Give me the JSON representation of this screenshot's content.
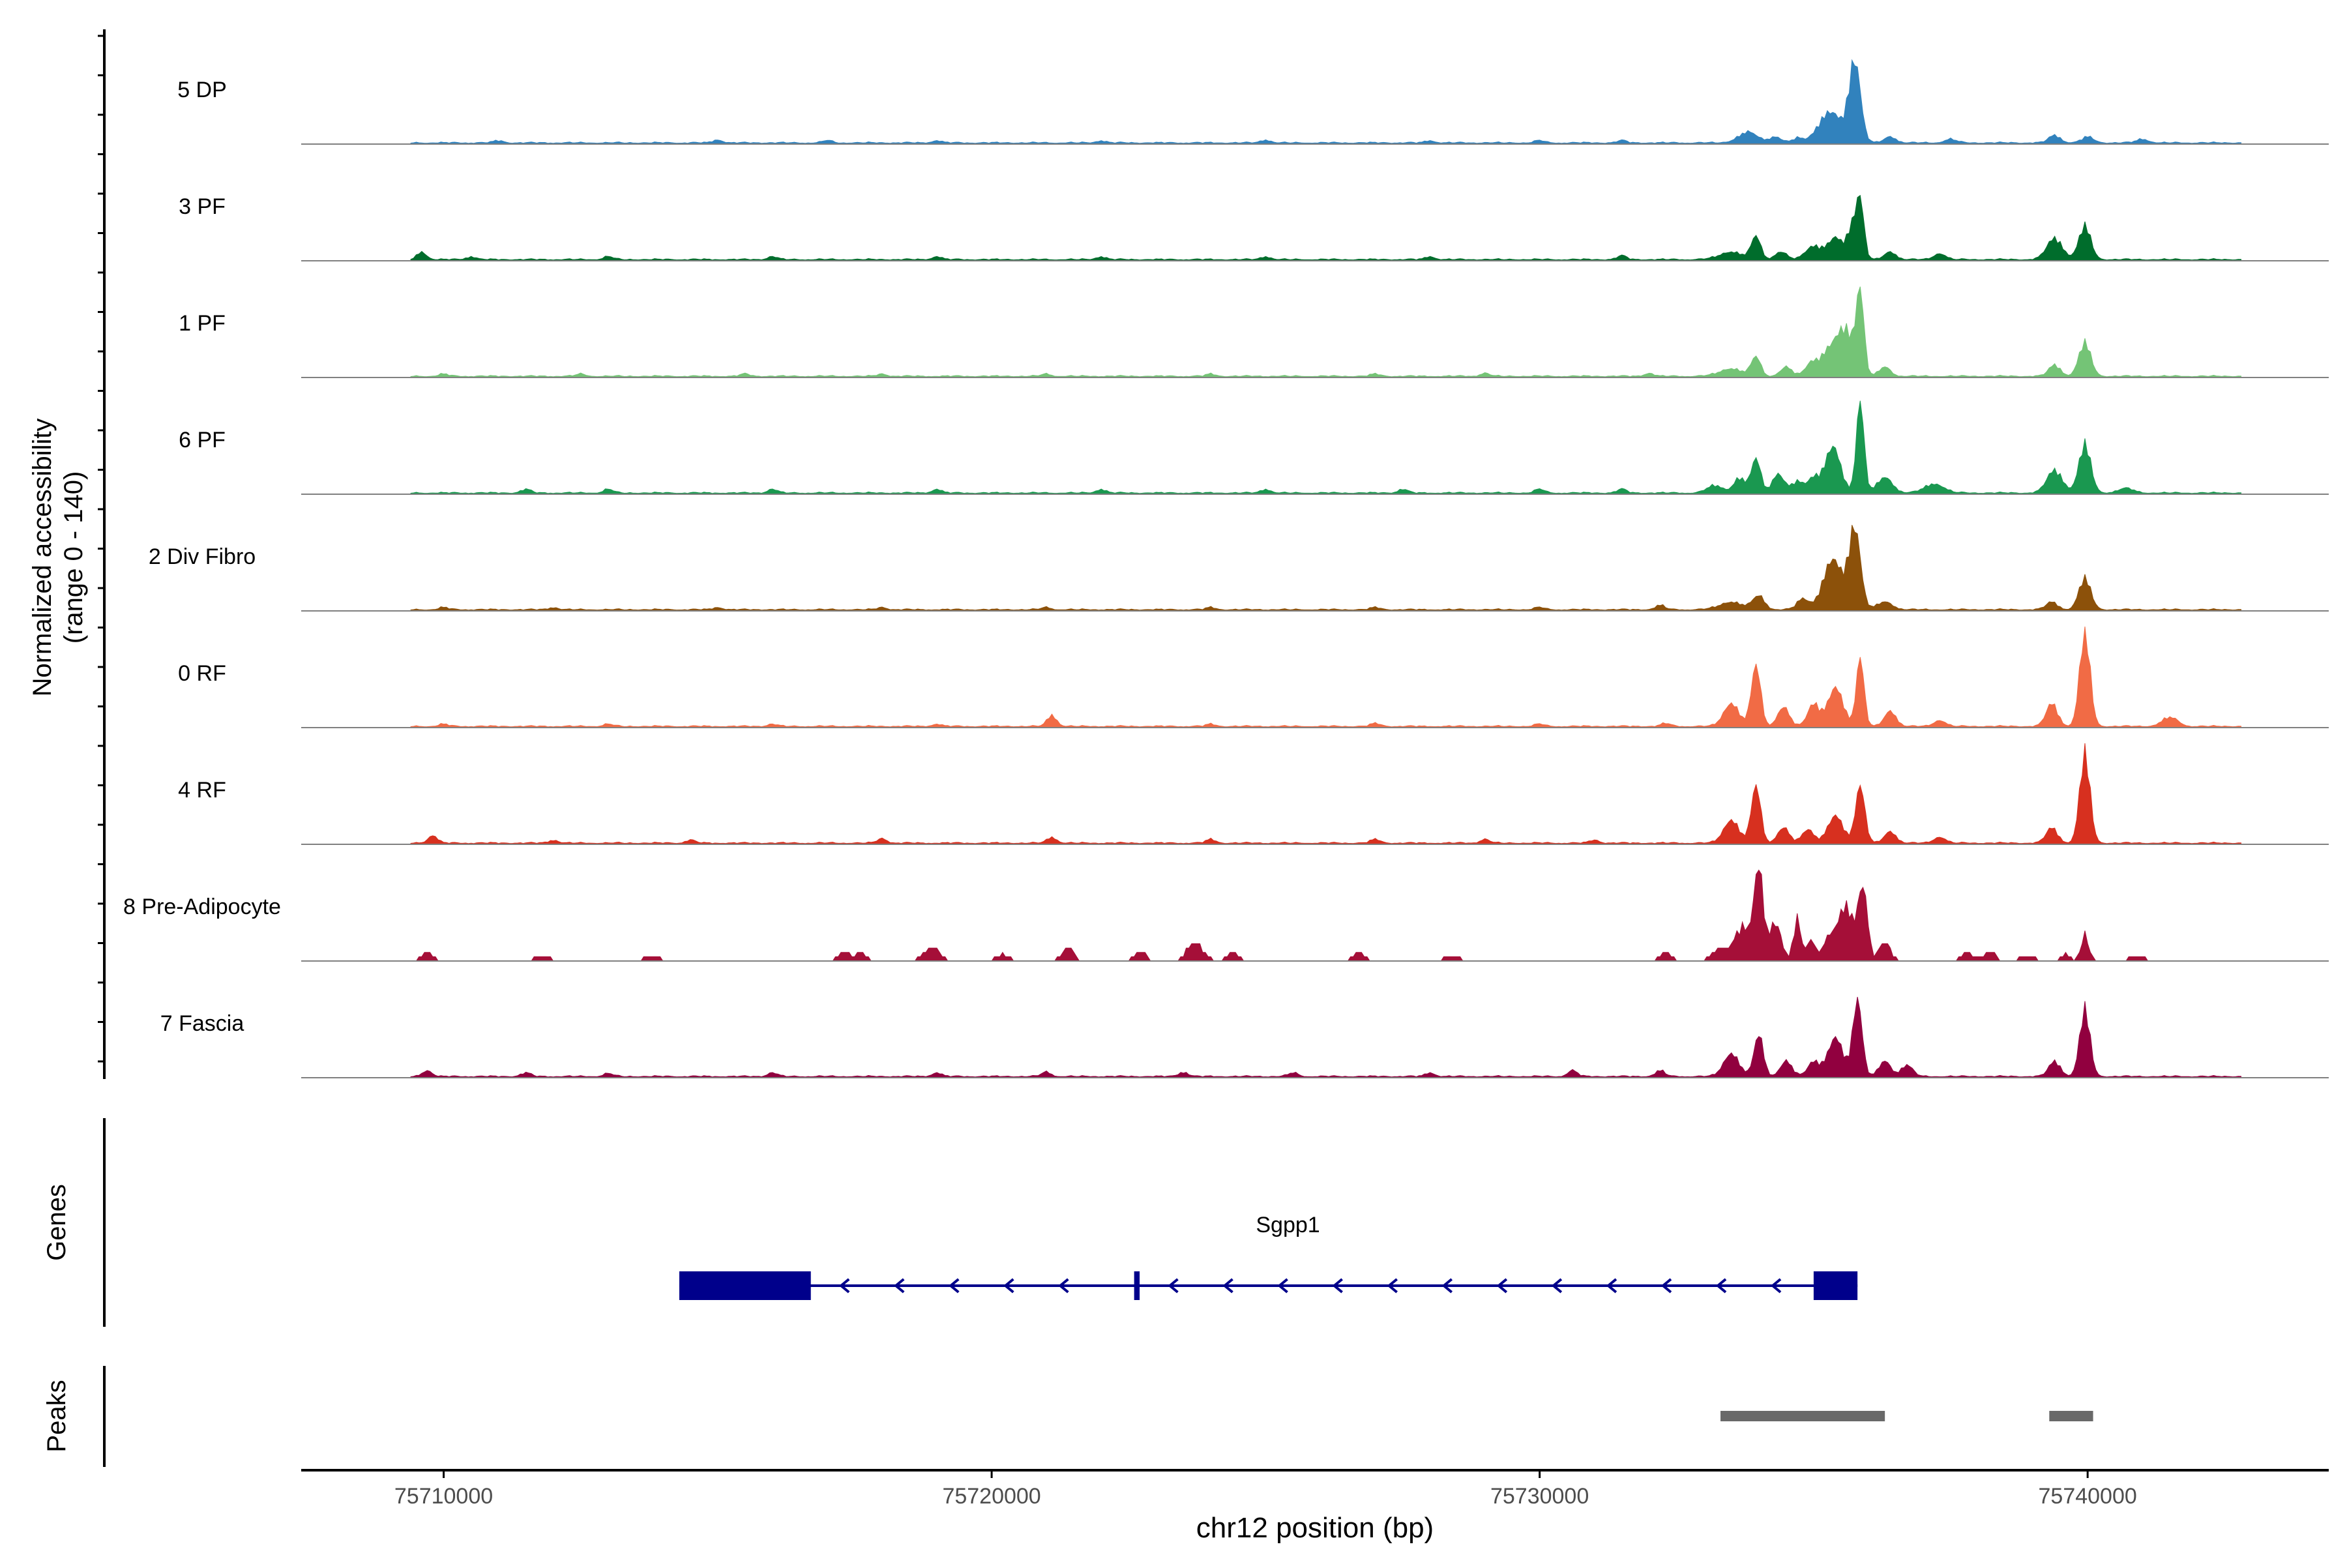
{
  "chart_data": {
    "type": "area",
    "title": "",
    "chromosome": "chr12",
    "xlabel": "chr12 position (bp)",
    "ylabel": "Normalized accessibility",
    "ylabel_range": "(range 0 - 140)",
    "xlim": [
      75707400,
      75744400
    ],
    "ylim": [
      0,
      140
    ],
    "x_ticks": [
      75710000,
      75720000,
      75730000,
      75740000
    ],
    "x_tick_labels": [
      "75710000",
      "75720000",
      "75730000",
      "75740000"
    ],
    "tracks": [
      {
        "name": "5 DP",
        "color": "#3182BD",
        "bg": [
          [
            75709000,
            4
          ],
          [
            75711000,
            3
          ],
          [
            75715000,
            4
          ],
          [
            75717000,
            3
          ],
          [
            75719000,
            3
          ],
          [
            75722000,
            3
          ],
          [
            75725000,
            4
          ],
          [
            75728000,
            3
          ],
          [
            75730000,
            3
          ],
          [
            75731500,
            3
          ]
        ],
        "peaks": [
          [
            75733800,
            14,
            250
          ],
          [
            75734300,
            8,
            150
          ],
          [
            75734700,
            6,
            120
          ],
          [
            75735300,
            40,
            300
          ],
          [
            75735750,
            105,
            150
          ],
          [
            75736400,
            8,
            150
          ],
          [
            75737500,
            5,
            150
          ],
          [
            75739400,
            10,
            150
          ],
          [
            75740000,
            8,
            150
          ],
          [
            75741000,
            5,
            150
          ]
        ]
      },
      {
        "name": "3 PF",
        "color": "#006D2C",
        "bg": [
          [
            75709600,
            10
          ],
          [
            75710500,
            4
          ],
          [
            75713000,
            4
          ],
          [
            75716000,
            4
          ],
          [
            75719000,
            4
          ],
          [
            75722000,
            4
          ],
          [
            75725000,
            4
          ],
          [
            75728000,
            4
          ],
          [
            75731500,
            5
          ]
        ],
        "peaks": [
          [
            75733500,
            10,
            300
          ],
          [
            75733950,
            30,
            120
          ],
          [
            75734400,
            10,
            150
          ],
          [
            75735000,
            18,
            200
          ],
          [
            75735400,
            28,
            200
          ],
          [
            75735700,
            40,
            120
          ],
          [
            75735850,
            75,
            100
          ],
          [
            75736400,
            10,
            150
          ],
          [
            75737300,
            8,
            150
          ],
          [
            75739400,
            28,
            200
          ],
          [
            75739950,
            45,
            150
          ]
        ]
      },
      {
        "name": "1 PF",
        "color": "#74C476",
        "bg": [
          [
            75710000,
            3
          ],
          [
            75712500,
            3
          ],
          [
            75715500,
            3
          ],
          [
            75718000,
            3
          ],
          [
            75721000,
            3
          ],
          [
            75724000,
            3
          ],
          [
            75727000,
            3
          ],
          [
            75729000,
            4
          ],
          [
            75732000,
            4
          ]
        ],
        "peaks": [
          [
            75733500,
            10,
            300
          ],
          [
            75733950,
            25,
            120
          ],
          [
            75734500,
            12,
            150
          ],
          [
            75734950,
            15,
            150
          ],
          [
            75735300,
            35,
            250
          ],
          [
            75735600,
            55,
            200
          ],
          [
            75735850,
            105,
            100
          ],
          [
            75736300,
            12,
            150
          ],
          [
            75739400,
            15,
            150
          ],
          [
            75739950,
            45,
            150
          ]
        ]
      },
      {
        "name": "6 PF",
        "color": "#1A9850",
        "bg": [
          [
            75711500,
            5
          ],
          [
            75713000,
            5
          ],
          [
            75716000,
            5
          ],
          [
            75719000,
            5
          ],
          [
            75722000,
            5
          ],
          [
            75725000,
            5
          ],
          [
            75727500,
            5
          ],
          [
            75730000,
            5
          ],
          [
            75731500,
            5
          ]
        ],
        "peaks": [
          [
            75733200,
            10,
            200
          ],
          [
            75733650,
            20,
            150
          ],
          [
            75733950,
            45,
            120
          ],
          [
            75734350,
            25,
            150
          ],
          [
            75734700,
            15,
            150
          ],
          [
            75735000,
            20,
            150
          ],
          [
            75735350,
            60,
            200
          ],
          [
            75735850,
            120,
            100
          ],
          [
            75736300,
            20,
            200
          ],
          [
            75737200,
            12,
            250
          ],
          [
            75739400,
            30,
            200
          ],
          [
            75739950,
            65,
            150
          ],
          [
            75740700,
            6,
            200
          ]
        ]
      },
      {
        "name": "2 Div Fibro",
        "color": "#8C510A",
        "bg": [
          [
            75710000,
            3
          ],
          [
            75712000,
            3
          ],
          [
            75715000,
            3
          ],
          [
            75718000,
            3
          ],
          [
            75721000,
            3
          ],
          [
            75724000,
            3
          ],
          [
            75727000,
            3
          ],
          [
            75730000,
            3
          ],
          [
            75732200,
            6
          ]
        ],
        "peaks": [
          [
            75733500,
            10,
            300
          ],
          [
            75734000,
            18,
            150
          ],
          [
            75734800,
            14,
            150
          ],
          [
            75735350,
            65,
            250
          ],
          [
            75735750,
            105,
            150
          ],
          [
            75736300,
            10,
            200
          ],
          [
            75739350,
            10,
            150
          ],
          [
            75739950,
            42,
            150
          ]
        ]
      },
      {
        "name": "0 RF",
        "color": "#F16B45",
        "bg": [
          [
            75710000,
            3
          ],
          [
            75713000,
            3
          ],
          [
            75716000,
            3
          ],
          [
            75719000,
            3
          ],
          [
            75721100,
            15
          ],
          [
            75724000,
            3
          ],
          [
            75727000,
            4
          ],
          [
            75730000,
            3
          ],
          [
            75732300,
            4
          ]
        ],
        "peaks": [
          [
            75733500,
            30,
            200
          ],
          [
            75733950,
            80,
            120
          ],
          [
            75734450,
            25,
            150
          ],
          [
            75735000,
            30,
            150
          ],
          [
            75735400,
            50,
            200
          ],
          [
            75735850,
            90,
            100
          ],
          [
            75736400,
            20,
            150
          ],
          [
            75737300,
            8,
            150
          ],
          [
            75739350,
            30,
            150
          ],
          [
            75739950,
            130,
            130
          ],
          [
            75741500,
            12,
            200
          ]
        ]
      },
      {
        "name": "4 RF",
        "color": "#D7301F",
        "bg": [
          [
            75709800,
            10
          ],
          [
            75712000,
            4
          ],
          [
            75714500,
            4
          ],
          [
            75718000,
            6
          ],
          [
            75721100,
            8
          ],
          [
            75724000,
            5
          ],
          [
            75727000,
            5
          ],
          [
            75729000,
            5
          ],
          [
            75731000,
            4
          ]
        ],
        "peaks": [
          [
            75733500,
            30,
            200
          ],
          [
            75733950,
            75,
            120
          ],
          [
            75734450,
            20,
            150
          ],
          [
            75734900,
            18,
            150
          ],
          [
            75735400,
            35,
            200
          ],
          [
            75735850,
            75,
            120
          ],
          [
            75736400,
            15,
            150
          ],
          [
            75737300,
            8,
            150
          ],
          [
            75739350,
            20,
            150
          ],
          [
            75739950,
            120,
            130
          ]
        ]
      },
      {
        "name": "8 Pre-Adipocyte",
        "color": "#A50F38",
        "sparse": true,
        "bg": [
          [
            75709700,
            12,
            150
          ],
          [
            75711800,
            8,
            150
          ],
          [
            75713800,
            8,
            150
          ],
          [
            75717300,
            12,
            150
          ],
          [
            75717600,
            10,
            150
          ],
          [
            75718900,
            20,
            200
          ],
          [
            75720200,
            10,
            150
          ],
          [
            75721400,
            18,
            150
          ],
          [
            75722700,
            14,
            150
          ],
          [
            75723700,
            25,
            200
          ],
          [
            75724400,
            12,
            150
          ],
          [
            75726700,
            12,
            150
          ],
          [
            75728400,
            8,
            150
          ],
          [
            75732300,
            12,
            150
          ],
          [
            75735600,
            8,
            150
          ],
          [
            75737800,
            10,
            150
          ],
          [
            75738200,
            14,
            150
          ],
          [
            75738900,
            8,
            150
          ],
          [
            75740900,
            8,
            150
          ]
        ],
        "peaks": [
          [
            75733300,
            15,
            200
          ],
          [
            75733700,
            45,
            200
          ],
          [
            75734000,
            120,
            120
          ],
          [
            75734300,
            50,
            150
          ],
          [
            75734700,
            55,
            100
          ],
          [
            75734950,
            25,
            100
          ],
          [
            75735300,
            30,
            200
          ],
          [
            75735600,
            60,
            200
          ],
          [
            75735900,
            95,
            120
          ],
          [
            75736300,
            25,
            150
          ],
          [
            75739600,
            8,
            100
          ],
          [
            75739950,
            35,
            100
          ]
        ]
      },
      {
        "name": "7 Fascia",
        "color": "#91003F",
        "bg": [
          [
            75709700,
            8
          ],
          [
            75711500,
            5
          ],
          [
            75713000,
            4
          ],
          [
            75716000,
            5
          ],
          [
            75719000,
            5
          ],
          [
            75721000,
            6
          ],
          [
            75723500,
            6
          ],
          [
            75725500,
            5
          ],
          [
            75728000,
            5
          ],
          [
            75730600,
            8
          ],
          [
            75732200,
            8
          ]
        ],
        "peaks": [
          [
            75733500,
            30,
            200
          ],
          [
            75734000,
            55,
            120
          ],
          [
            75734500,
            20,
            150
          ],
          [
            75735000,
            20,
            150
          ],
          [
            75735400,
            50,
            200
          ],
          [
            75735800,
            100,
            120
          ],
          [
            75736300,
            20,
            150
          ],
          [
            75736700,
            15,
            150
          ],
          [
            75739400,
            20,
            150
          ],
          [
            75739950,
            90,
            130
          ]
        ]
      }
    ],
    "genes": {
      "label": "Genes",
      "gene_name": "Sgpp1",
      "color": "#00008B",
      "start": 75714300,
      "end": 75735800,
      "strand": "-",
      "exons": [
        [
          75714300,
          75716700
        ],
        [
          75722600,
          75722700
        ],
        [
          75735000,
          75735800
        ]
      ]
    },
    "peaks_track": {
      "label": "Peaks",
      "color": "#696969",
      "regions": [
        [
          75733300,
          75736300
        ],
        [
          75739300,
          75740100
        ]
      ]
    }
  }
}
